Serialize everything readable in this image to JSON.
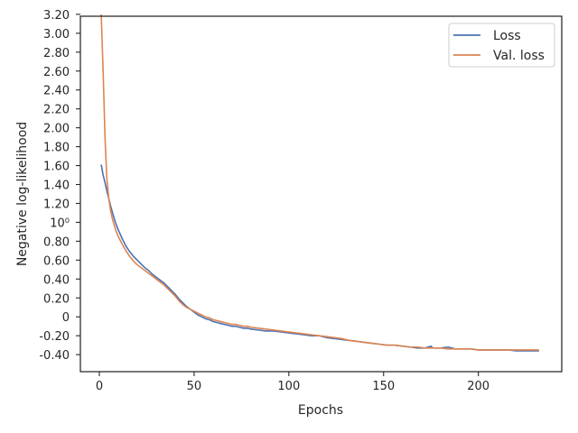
{
  "chart_data": {
    "type": "line",
    "xlabel": "Epochs",
    "ylabel": "Negative log-likelihood",
    "xlim": [
      -10,
      244
    ],
    "ylim": [
      -0.58,
      3.18
    ],
    "x_ticks": [
      0,
      50,
      100,
      150,
      200
    ],
    "y_ticks": [
      {
        "value": -0.4,
        "label": "-0.40"
      },
      {
        "value": -0.2,
        "label": "-0.20"
      },
      {
        "value": 0.0,
        "label": "0"
      },
      {
        "value": 0.2,
        "label": "0.20"
      },
      {
        "value": 0.4,
        "label": "0.40"
      },
      {
        "value": 0.6,
        "label": "0.60"
      },
      {
        "value": 0.8,
        "label": "0.80"
      },
      {
        "value": 1.0,
        "label": "10⁰"
      },
      {
        "value": 1.2,
        "label": "1.20"
      },
      {
        "value": 1.4,
        "label": "1.40"
      },
      {
        "value": 1.6,
        "label": "1.60"
      },
      {
        "value": 1.8,
        "label": "1.80"
      },
      {
        "value": 2.0,
        "label": "2.00"
      },
      {
        "value": 2.2,
        "label": "2.20"
      },
      {
        "value": 2.4,
        "label": "2.40"
      },
      {
        "value": 2.6,
        "label": "2.60"
      },
      {
        "value": 2.8,
        "label": "2.80"
      },
      {
        "value": 3.0,
        "label": "3.00"
      },
      {
        "value": 3.2,
        "label": "3.20"
      }
    ],
    "legend_position": "upper right",
    "series": [
      {
        "name": "Loss",
        "color": "#4c72b0",
        "points": [
          [
            1,
            1.61
          ],
          [
            2,
            1.5
          ],
          [
            3,
            1.42
          ],
          [
            4,
            1.33
          ],
          [
            5,
            1.25
          ],
          [
            6,
            1.17
          ],
          [
            7,
            1.1
          ],
          [
            8,
            1.03
          ],
          [
            9,
            0.97
          ],
          [
            10,
            0.92
          ],
          [
            12,
            0.83
          ],
          [
            14,
            0.75
          ],
          [
            16,
            0.69
          ],
          [
            18,
            0.64
          ],
          [
            20,
            0.6
          ],
          [
            22,
            0.56
          ],
          [
            24,
            0.52
          ],
          [
            26,
            0.49
          ],
          [
            28,
            0.45
          ],
          [
            30,
            0.42
          ],
          [
            32,
            0.39
          ],
          [
            34,
            0.36
          ],
          [
            36,
            0.32
          ],
          [
            38,
            0.28
          ],
          [
            40,
            0.24
          ],
          [
            42,
            0.19
          ],
          [
            44,
            0.15
          ],
          [
            46,
            0.11
          ],
          [
            48,
            0.08
          ],
          [
            50,
            0.05
          ],
          [
            52,
            0.02
          ],
          [
            54,
            0.0
          ],
          [
            56,
            -0.02
          ],
          [
            58,
            -0.03
          ],
          [
            60,
            -0.05
          ],
          [
            62,
            -0.06
          ],
          [
            64,
            -0.07
          ],
          [
            66,
            -0.08
          ],
          [
            68,
            -0.09
          ],
          [
            70,
            -0.1
          ],
          [
            72,
            -0.1
          ],
          [
            74,
            -0.11
          ],
          [
            76,
            -0.12
          ],
          [
            78,
            -0.12
          ],
          [
            80,
            -0.13
          ],
          [
            84,
            -0.14
          ],
          [
            88,
            -0.15
          ],
          [
            92,
            -0.15
          ],
          [
            96,
            -0.16
          ],
          [
            100,
            -0.17
          ],
          [
            104,
            -0.18
          ],
          [
            108,
            -0.19
          ],
          [
            112,
            -0.2
          ],
          [
            116,
            -0.2
          ],
          [
            120,
            -0.22
          ],
          [
            124,
            -0.23
          ],
          [
            128,
            -0.24
          ],
          [
            132,
            -0.25
          ],
          [
            136,
            -0.26
          ],
          [
            140,
            -0.27
          ],
          [
            144,
            -0.28
          ],
          [
            148,
            -0.29
          ],
          [
            152,
            -0.3
          ],
          [
            156,
            -0.3
          ],
          [
            160,
            -0.31
          ],
          [
            164,
            -0.32
          ],
          [
            168,
            -0.33
          ],
          [
            172,
            -0.33
          ],
          [
            175,
            -0.31
          ],
          [
            176,
            -0.33
          ],
          [
            180,
            -0.33
          ],
          [
            184,
            -0.32
          ],
          [
            188,
            -0.34
          ],
          [
            192,
            -0.34
          ],
          [
            196,
            -0.34
          ],
          [
            200,
            -0.35
          ],
          [
            204,
            -0.35
          ],
          [
            208,
            -0.35
          ],
          [
            212,
            -0.35
          ],
          [
            216,
            -0.35
          ],
          [
            220,
            -0.36
          ],
          [
            224,
            -0.36
          ],
          [
            228,
            -0.36
          ],
          [
            232,
            -0.36
          ]
        ]
      },
      {
        "name": "Val. loss",
        "color": "#dd8452",
        "points": [
          [
            1,
            3.2
          ],
          [
            2,
            2.6
          ],
          [
            3,
            1.9
          ],
          [
            4,
            1.45
          ],
          [
            5,
            1.25
          ],
          [
            6,
            1.12
          ],
          [
            7,
            1.03
          ],
          [
            8,
            0.96
          ],
          [
            9,
            0.9
          ],
          [
            10,
            0.85
          ],
          [
            12,
            0.77
          ],
          [
            14,
            0.7
          ],
          [
            16,
            0.64
          ],
          [
            18,
            0.59
          ],
          [
            20,
            0.55
          ],
          [
            22,
            0.52
          ],
          [
            24,
            0.49
          ],
          [
            26,
            0.46
          ],
          [
            28,
            0.43
          ],
          [
            30,
            0.4
          ],
          [
            32,
            0.37
          ],
          [
            34,
            0.34
          ],
          [
            36,
            0.3
          ],
          [
            38,
            0.26
          ],
          [
            40,
            0.22
          ],
          [
            42,
            0.17
          ],
          [
            44,
            0.13
          ],
          [
            46,
            0.1
          ],
          [
            48,
            0.08
          ],
          [
            50,
            0.06
          ],
          [
            52,
            0.04
          ],
          [
            54,
            0.02
          ],
          [
            56,
            0.0
          ],
          [
            58,
            -0.01
          ],
          [
            60,
            -0.03
          ],
          [
            62,
            -0.04
          ],
          [
            64,
            -0.05
          ],
          [
            66,
            -0.06
          ],
          [
            68,
            -0.07
          ],
          [
            70,
            -0.08
          ],
          [
            72,
            -0.08
          ],
          [
            74,
            -0.09
          ],
          [
            76,
            -0.1
          ],
          [
            78,
            -0.1
          ],
          [
            80,
            -0.11
          ],
          [
            84,
            -0.12
          ],
          [
            88,
            -0.13
          ],
          [
            92,
            -0.14
          ],
          [
            96,
            -0.15
          ],
          [
            100,
            -0.16
          ],
          [
            104,
            -0.17
          ],
          [
            108,
            -0.18
          ],
          [
            112,
            -0.19
          ],
          [
            116,
            -0.2
          ],
          [
            120,
            -0.21
          ],
          [
            124,
            -0.22
          ],
          [
            128,
            -0.23
          ],
          [
            132,
            -0.25
          ],
          [
            136,
            -0.26
          ],
          [
            140,
            -0.27
          ],
          [
            144,
            -0.28
          ],
          [
            148,
            -0.29
          ],
          [
            152,
            -0.3
          ],
          [
            156,
            -0.3
          ],
          [
            160,
            -0.31
          ],
          [
            164,
            -0.32
          ],
          [
            168,
            -0.32
          ],
          [
            172,
            -0.33
          ],
          [
            176,
            -0.33
          ],
          [
            180,
            -0.33
          ],
          [
            184,
            -0.34
          ],
          [
            188,
            -0.34
          ],
          [
            192,
            -0.34
          ],
          [
            196,
            -0.34
          ],
          [
            200,
            -0.35
          ],
          [
            204,
            -0.35
          ],
          [
            208,
            -0.35
          ],
          [
            212,
            -0.35
          ],
          [
            216,
            -0.35
          ],
          [
            220,
            -0.35
          ],
          [
            224,
            -0.35
          ],
          [
            228,
            -0.35
          ],
          [
            232,
            -0.35
          ]
        ]
      }
    ]
  }
}
